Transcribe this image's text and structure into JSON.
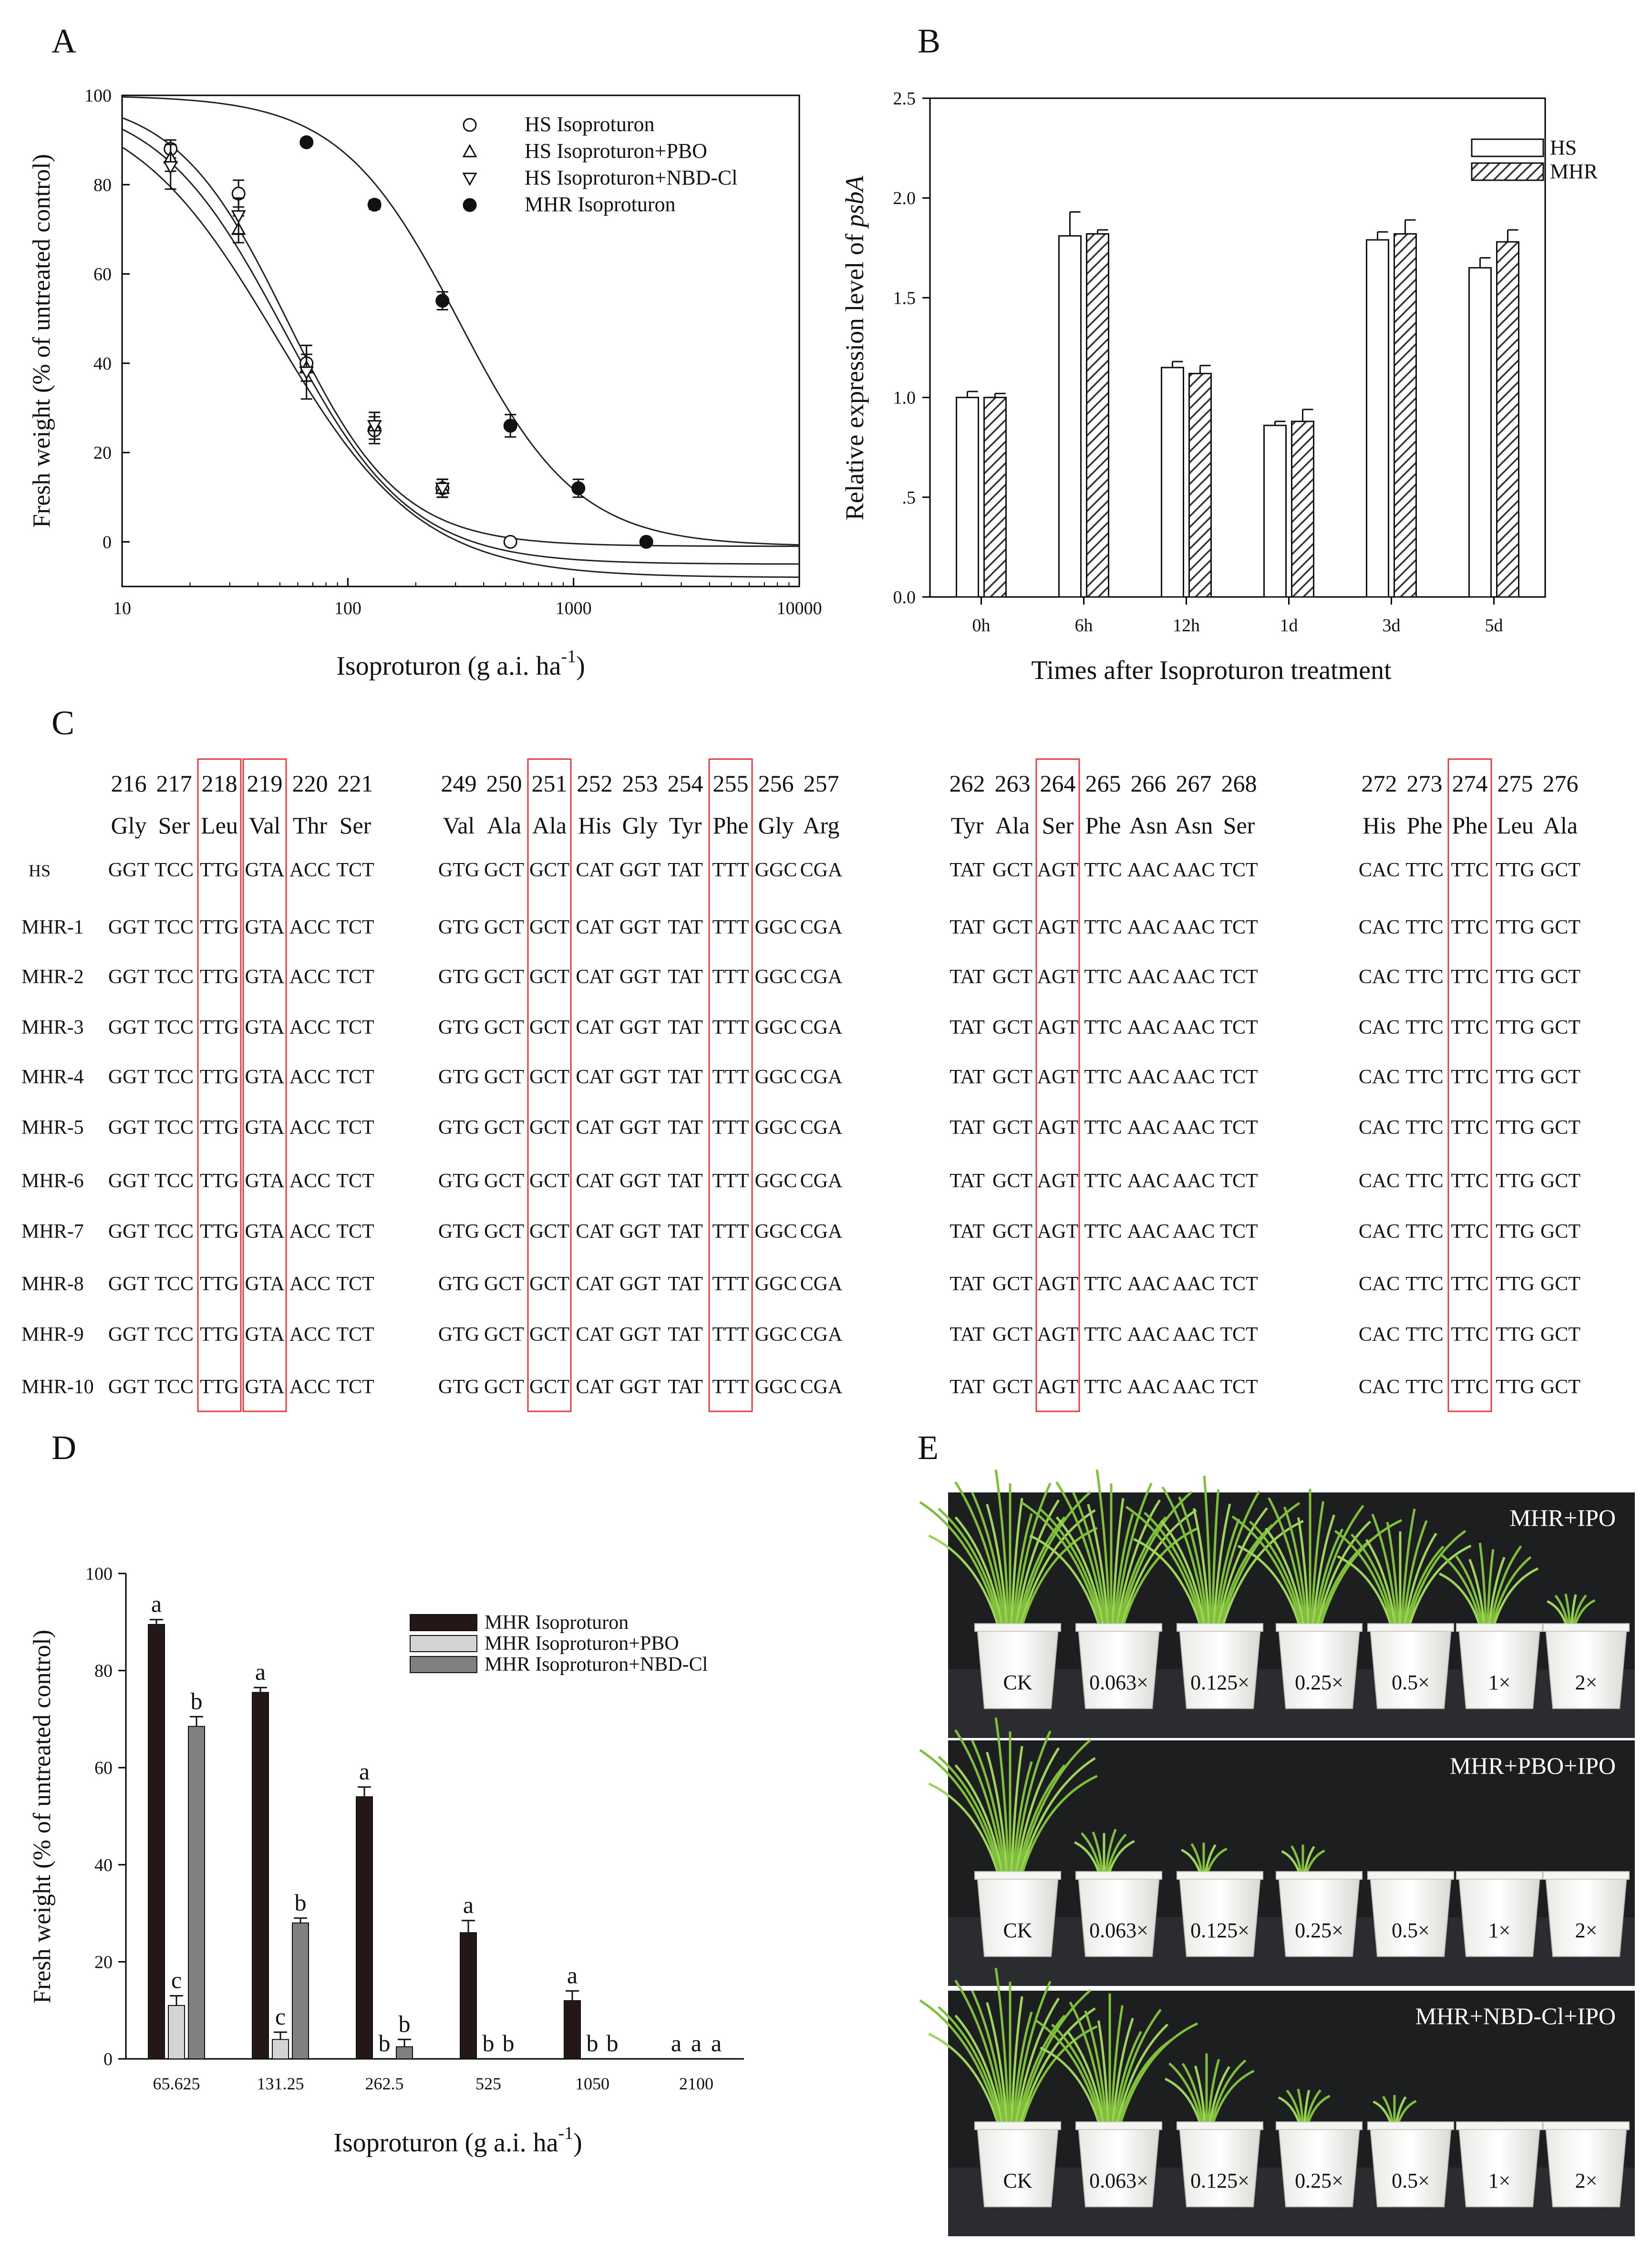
{
  "panels": {
    "A": {
      "label": "A"
    },
    "B": {
      "label": "B"
    },
    "C": {
      "label": "C"
    },
    "D": {
      "label": "D"
    },
    "E": {
      "label": "E"
    }
  },
  "chart_data": [
    {
      "id": "A",
      "type": "line",
      "x_scale": "log",
      "xlabel": "Isoproturon (g a.i. ha",
      "xlabel_sup": "-1",
      "xlabel_close": ")",
      "ylabel": "Fresh weight (% of untreated control)",
      "xlim": [
        10,
        10000
      ],
      "ylim": [
        -10,
        100
      ],
      "x_ticks": [
        10,
        100,
        1000,
        10000
      ],
      "x_tick_labels": [
        "10",
        "100",
        "1000",
        "10000"
      ],
      "y_ticks": [
        0,
        20,
        40,
        60,
        80,
        100
      ],
      "y_tick_labels": [
        "0",
        "20",
        "40",
        "60",
        "80",
        "100"
      ],
      "series": [
        {
          "name": "HS Isoproturon",
          "marker": "circle-open",
          "x": [
            16.4,
            32.8,
            65.6,
            131.25,
            262.5,
            525
          ],
          "y": [
            88,
            78,
            40,
            25,
            12,
            0
          ],
          "err": [
            2,
            3,
            4,
            3,
            2,
            0.5
          ],
          "curve": {
            "top": 100,
            "bottom": -8,
            "ed50": 48,
            "slope": 1.35
          }
        },
        {
          "name": "HS Isoproturon+PBO",
          "marker": "triangle-up-open",
          "x": [
            16.4,
            32.8,
            65.6,
            131.25,
            262.5
          ],
          "y": [
            86,
            70,
            39,
            26,
            12
          ],
          "err": [
            3,
            3,
            3,
            3,
            2
          ],
          "curve": {
            "top": 100,
            "bottom": -5,
            "ed50": 52,
            "slope": 1.55
          }
        },
        {
          "name": "HS Isoproturon+NBD-Cl",
          "marker": "triangle-down-open",
          "x": [
            16.4,
            32.8,
            65.6,
            131.25,
            262.5
          ],
          "y": [
            84,
            73,
            38,
            26,
            12
          ],
          "err": [
            5,
            4,
            6,
            3,
            2
          ],
          "curve": {
            "top": 100,
            "bottom": -1,
            "ed50": 54,
            "slope": 1.75
          }
        },
        {
          "name": "MHR Isoproturon",
          "marker": "circle-filled",
          "x": [
            65.625,
            131.25,
            262.5,
            525,
            1050,
            2100
          ],
          "y": [
            89.5,
            75.5,
            54,
            26,
            12,
            0
          ],
          "err": [
            0.8,
            1,
            2,
            2.5,
            2,
            0
          ],
          "curve": {
            "top": 100,
            "bottom": -1,
            "ed50": 310,
            "slope": 1.65
          }
        }
      ]
    },
    {
      "id": "B",
      "type": "bar",
      "categories": [
        "0h",
        "6h",
        "12h",
        "1d",
        "3d",
        "5d"
      ],
      "series": [
        {
          "name": "HS",
          "pattern": "open",
          "values": [
            1.0,
            1.81,
            1.15,
            0.86,
            1.79,
            1.65
          ],
          "err": [
            0.03,
            0.12,
            0.03,
            0.02,
            0.04,
            0.05
          ]
        },
        {
          "name": "MHR",
          "pattern": "hatched",
          "values": [
            1.0,
            1.82,
            1.12,
            0.88,
            1.82,
            1.78
          ],
          "err": [
            0.02,
            0.02,
            0.04,
            0.06,
            0.07,
            0.06
          ]
        }
      ],
      "xlabel": "Times after Isoproturon treatment",
      "ylabel": "Relative expression level of ",
      "ylabel_italic": "psbA",
      "ylim": [
        0,
        2.5
      ],
      "y_ticks": [
        0,
        0.5,
        1.0,
        1.5,
        2.0,
        2.5
      ],
      "y_tick_labels": [
        "0.0",
        ".5",
        "1.0",
        "1.5",
        "2.0",
        "2.5"
      ]
    },
    {
      "id": "D",
      "type": "bar",
      "categories": [
        "65.625",
        "131.25",
        "262.5",
        "525",
        "1050",
        "2100"
      ],
      "series": [
        {
          "name": "MHR Isoproturon",
          "color": "#231815",
          "values": [
            89.5,
            75.5,
            54,
            26,
            12,
            0
          ],
          "err": [
            1,
            1,
            2,
            2.5,
            2,
            0
          ],
          "letters": [
            "a",
            "a",
            "a",
            "a",
            "a",
            "a"
          ]
        },
        {
          "name": "MHR Isoproturon+PBO",
          "color": "#d4d4d4",
          "values": [
            11,
            4,
            0,
            0,
            0,
            0
          ],
          "err": [
            2,
            1.5,
            0,
            0,
            0,
            0
          ],
          "letters": [
            "c",
            "c",
            "b",
            "b",
            "b",
            "a"
          ]
        },
        {
          "name": "MHR Isoproturon+NBD-Cl",
          "color": "#808080",
          "values": [
            68.5,
            28,
            2.5,
            0,
            0,
            0
          ],
          "err": [
            2,
            1,
            1.5,
            0,
            0,
            0
          ],
          "letters": [
            "b",
            "b",
            "b",
            "b",
            "b",
            "a"
          ]
        }
      ],
      "xlabel": "Isoproturon (g a.i. ha",
      "xlabel_sup": "-1",
      "xlabel_close": ")",
      "ylabel": "Fresh weight (% of untreated control)",
      "ylim": [
        0,
        100
      ],
      "y_ticks": [
        0,
        20,
        40,
        60,
        80,
        100
      ],
      "y_tick_labels": [
        "0",
        "20",
        "40",
        "60",
        "80",
        "100"
      ]
    }
  ],
  "alignment": {
    "groups": [
      {
        "positions": [
          "216",
          "217",
          "218",
          "219",
          "220",
          "221"
        ],
        "residues": [
          "Gly",
          "Ser",
          "Leu",
          "Val",
          "Thr",
          "Ser"
        ],
        "codons": [
          "GGT",
          "TCC",
          "TTG",
          "GTA",
          "ACC",
          "TCT"
        ],
        "boxed": [
          2,
          3
        ]
      },
      {
        "positions": [
          "249",
          "250",
          "251",
          "252",
          "253",
          "254",
          "255",
          "256",
          "257"
        ],
        "residues": [
          "Val",
          "Ala",
          "Ala",
          "His",
          "Gly",
          "Tyr",
          "Phe",
          "Gly",
          "Arg"
        ],
        "codons": [
          "GTG",
          "GCT",
          "GCT",
          "CAT",
          "GGT",
          "TAT",
          "TTT",
          "GGC",
          "CGA"
        ],
        "boxed": [
          2,
          6
        ]
      },
      {
        "positions": [
          "262",
          "263",
          "264",
          "265",
          "266",
          "267",
          "268"
        ],
        "residues": [
          "Tyr",
          "Ala",
          "Ser",
          "Phe",
          "Asn",
          "Asn",
          "Ser"
        ],
        "codons": [
          "TAT",
          "GCT",
          "AGT",
          "TTC",
          "AAC",
          "AAC",
          "TCT"
        ],
        "boxed": [
          2
        ]
      },
      {
        "positions": [
          "272",
          "273",
          "274",
          "275",
          "276"
        ],
        "residues": [
          "His",
          "Phe",
          "Phe",
          "Leu",
          "Ala"
        ],
        "codons": [
          "CAC",
          "TTC",
          "TTC",
          "TTG",
          "GCT"
        ],
        "boxed": [
          2
        ]
      }
    ],
    "samples": [
      "HS",
      "MHR-1",
      "MHR-2",
      "MHR-3",
      "MHR-4",
      "MHR-5",
      "MHR-6",
      "MHR-7",
      "MHR-8",
      "MHR-9",
      "MHR-10"
    ]
  },
  "photos": [
    {
      "title": "MHR+IPO",
      "pots": [
        "CK",
        "0.063×",
        "0.125×",
        "0.25×",
        "0.5×",
        "1×",
        "2×"
      ],
      "growth": [
        1.0,
        1.0,
        0.95,
        0.85,
        0.7,
        0.45,
        0.05
      ]
    },
    {
      "title": "MHR+PBO+IPO",
      "pots": [
        "CK",
        "0.063×",
        "0.125×",
        "0.25×",
        "0.5×",
        "1×",
        "2×"
      ],
      "growth": [
        1.0,
        0.15,
        0.04,
        0.02,
        0.0,
        0.0,
        0.0
      ]
    },
    {
      "title": "MHR+NBD-Cl+IPO",
      "pots": [
        "CK",
        "0.063×",
        "0.125×",
        "0.25×",
        "0.5×",
        "1×",
        "2×"
      ],
      "growth": [
        1.0,
        0.8,
        0.35,
        0.08,
        0.02,
        0.0,
        0.0
      ]
    }
  ]
}
